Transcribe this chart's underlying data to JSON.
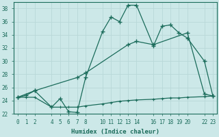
{
  "xlabel": "Humidex (Indice chaleur)",
  "bg_color": "#cce8e8",
  "grid_color": "#b0d0d0",
  "line_color": "#1a6b5a",
  "xlim": [
    -0.5,
    23.5
  ],
  "ylim": [
    22,
    39
  ],
  "xticks": [
    0,
    1,
    2,
    4,
    5,
    6,
    7,
    8,
    10,
    11,
    12,
    13,
    14,
    16,
    17,
    18,
    19,
    20,
    22,
    23
  ],
  "yticks": [
    22,
    24,
    26,
    28,
    30,
    32,
    34,
    36,
    38
  ],
  "series1_x": [
    0,
    1,
    2,
    4,
    5,
    6,
    7,
    8,
    10,
    11,
    12,
    13,
    14,
    16,
    17,
    18,
    19,
    20,
    22,
    23
  ],
  "series1_y": [
    24.5,
    24.8,
    25.5,
    23.0,
    24.3,
    22.3,
    22.2,
    27.5,
    34.5,
    36.7,
    36.0,
    38.5,
    38.5,
    32.3,
    35.3,
    35.5,
    34.3,
    33.5,
    30.0,
    24.7
  ],
  "series2_x": [
    0,
    2,
    7,
    8,
    13,
    14,
    16,
    20,
    22,
    23
  ],
  "series2_y": [
    24.5,
    25.5,
    27.5,
    28.2,
    32.5,
    33.0,
    32.5,
    34.3,
    25.0,
    24.7
  ],
  "series3_x": [
    0,
    1,
    2,
    4,
    5,
    6,
    7,
    8,
    10,
    11,
    12,
    13,
    14,
    16,
    17,
    18,
    19,
    20,
    22,
    23
  ],
  "series3_y": [
    24.5,
    24.5,
    24.5,
    23.0,
    23.0,
    23.0,
    23.0,
    23.2,
    23.5,
    23.7,
    23.9,
    24.0,
    24.1,
    24.2,
    24.3,
    24.4,
    24.4,
    24.5,
    24.6,
    24.7
  ]
}
